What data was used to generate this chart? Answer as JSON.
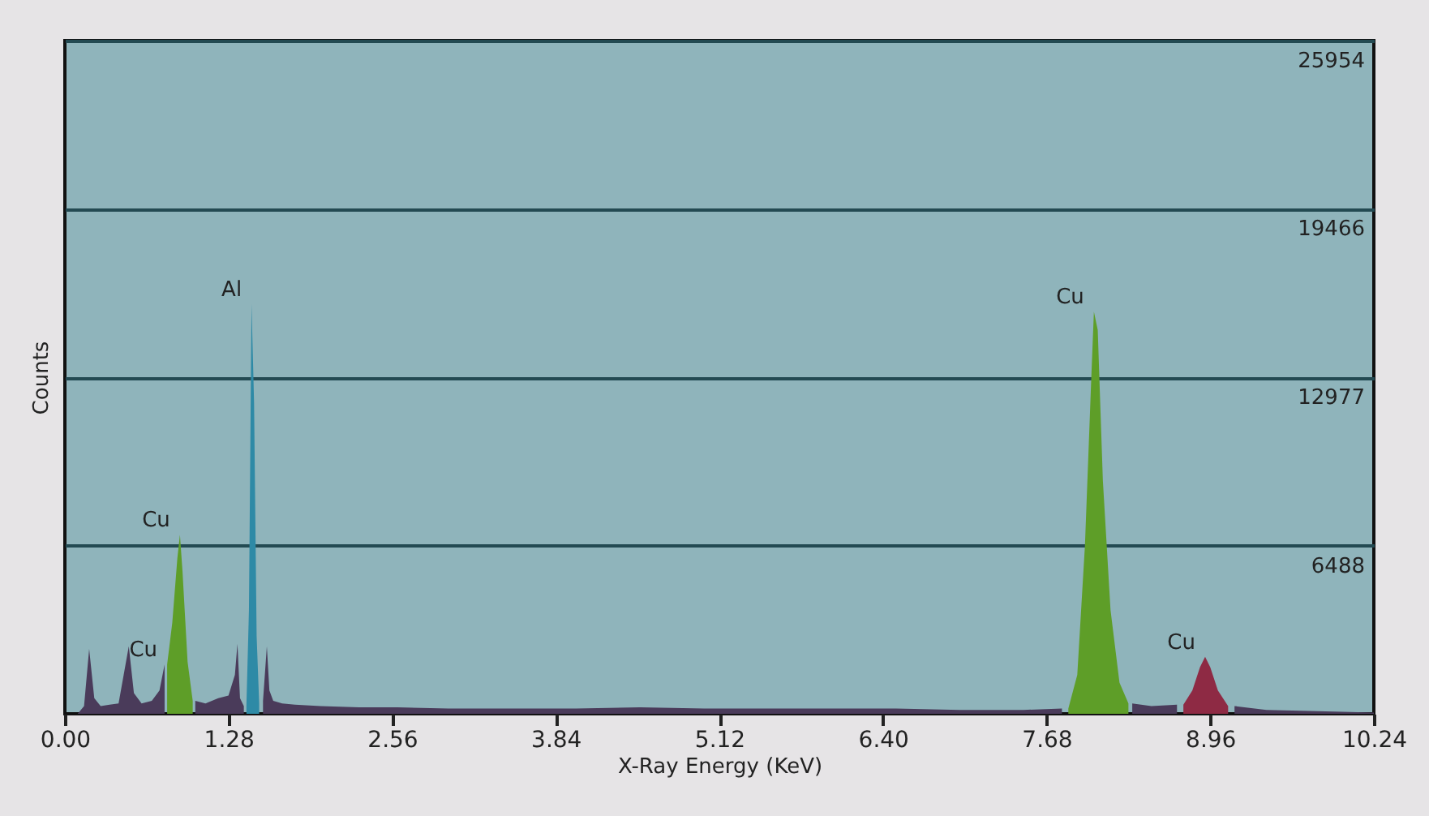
{
  "chart_data": {
    "type": "area",
    "xlabel": "X-Ray Energy (KeV)",
    "ylabel": "Counts",
    "xlim": [
      0,
      10.24
    ],
    "ylim": [
      0,
      25954
    ],
    "xticks": [
      {
        "value": 0,
        "label": "0.00"
      },
      {
        "value": 1.28,
        "label": "1.28"
      },
      {
        "value": 2.56,
        "label": "2.56"
      },
      {
        "value": 3.84,
        "label": "3.84"
      },
      {
        "value": 5.12,
        "label": "5.12"
      },
      {
        "value": 6.4,
        "label": "6.40"
      },
      {
        "value": 7.68,
        "label": "7.68"
      },
      {
        "value": 8.96,
        "label": "8.96"
      },
      {
        "value": 10.24,
        "label": "10.24"
      }
    ],
    "yticks": [
      6488,
      12977,
      19466,
      25954
    ],
    "grid": "y",
    "series": [
      {
        "color": "#4a3b5a",
        "x": [
          0.1,
          0.15,
          0.19,
          0.23,
          0.28,
          0.35,
          0.42,
          0.46,
          0.5,
          0.54,
          0.6,
          0.68,
          0.74,
          0.78,
          0.85,
          1.02,
          1.1,
          1.2,
          1.28,
          1.33,
          1.35,
          1.37,
          1.4,
          1.46,
          1.55,
          1.58,
          1.6,
          1.63,
          1.7,
          1.8,
          2.0,
          2.3,
          2.6,
          3.0,
          3.5,
          4.0,
          4.5,
          5.0,
          5.5,
          6.0,
          6.5,
          7.0,
          7.5,
          7.8,
          8.05,
          8.35,
          8.5,
          8.7,
          8.9,
          9.15,
          9.4,
          9.8,
          10.24
        ],
        "values": [
          0,
          300,
          2500,
          600,
          300,
          350,
          400,
          1500,
          2600,
          800,
          400,
          500,
          900,
          1900,
          null,
          500,
          400,
          600,
          700,
          1500,
          2700,
          600,
          300,
          null,
          500,
          2600,
          900,
          500,
          400,
          350,
          300,
          250,
          250,
          200,
          200,
          200,
          250,
          200,
          200,
          200,
          200,
          150,
          150,
          200,
          null,
          400,
          300,
          350,
          null,
          300,
          150,
          100,
          50
        ]
      },
      {
        "color": "#5e9e28",
        "x": [
          0.8,
          0.84,
          0.88,
          0.9,
          0.92,
          0.96,
          1.0
        ],
        "values": [
          1900,
          3500,
          6000,
          6900,
          5500,
          2000,
          500
        ]
      },
      {
        "color": "#2e8aa6",
        "x": [
          1.42,
          1.44,
          1.46,
          1.48,
          1.5,
          1.52
        ],
        "values": [
          300,
          4000,
          15800,
          12000,
          3000,
          400
        ]
      },
      {
        "color": "#5e9e28",
        "x": [
          7.85,
          7.92,
          7.98,
          8.03,
          8.05,
          8.08,
          8.12,
          8.18,
          8.25,
          8.32
        ],
        "values": [
          200,
          1500,
          6500,
          13000,
          15500,
          14800,
          9000,
          4000,
          1200,
          400
        ]
      },
      {
        "color": "#8e2a44",
        "x": [
          8.75,
          8.82,
          8.88,
          8.92,
          8.96,
          9.02,
          9.1
        ],
        "values": [
          350,
          900,
          1800,
          2200,
          1800,
          900,
          300
        ]
      }
    ],
    "annotations": [
      {
        "text": "Al",
        "x": 1.46,
        "y": 15800
      },
      {
        "text": "Cu",
        "x": 0.9,
        "y": 6900
      },
      {
        "text": "Cu",
        "x": 0.8,
        "y": 1900
      },
      {
        "text": "Cu",
        "x": 8.05,
        "y": 15500
      },
      {
        "text": "Cu",
        "x": 8.92,
        "y": 2200
      }
    ]
  }
}
